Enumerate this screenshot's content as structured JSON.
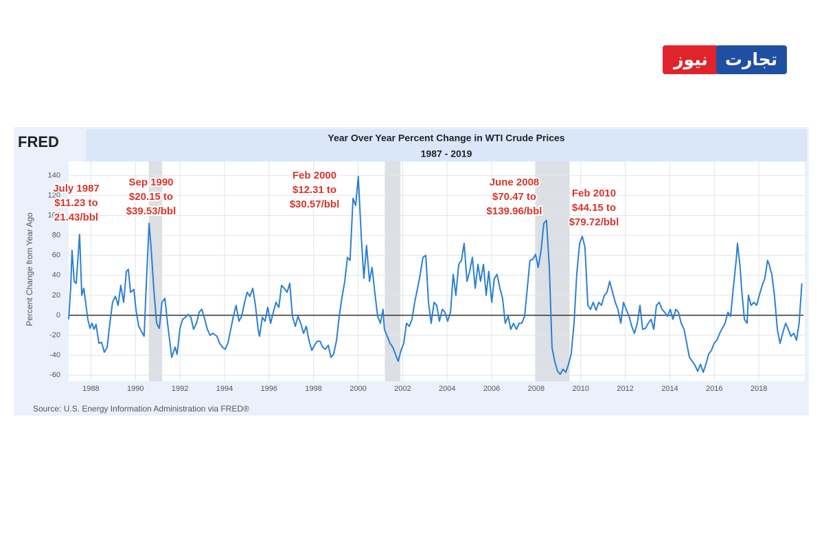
{
  "brand": {
    "left": "نیوز",
    "right": "تجارت"
  },
  "chart_data": {
    "type": "line",
    "logo": "FRED",
    "title": "Year Over Year Percent Change in WTI Crude Prices",
    "subtitle": "1987 - 2019",
    "y_label": "Percent Change from Year Ago",
    "source": "Source: U.S. Energy Information Administration via FRED®",
    "xlim": [
      1987,
      2020
    ],
    "ylim": [
      -66,
      154
    ],
    "xticks": [
      1988,
      1990,
      1992,
      1994,
      1996,
      1998,
      2000,
      2002,
      2004,
      2006,
      2008,
      2010,
      2012,
      2014,
      2016,
      2018
    ],
    "yticks": [
      -60,
      -40,
      -20,
      0,
      20,
      40,
      60,
      80,
      100,
      120,
      140
    ],
    "grid": true,
    "reference_line": 0,
    "recessions": [
      [
        1990.6,
        1991.2
      ],
      [
        2001.2,
        2001.9
      ],
      [
        2007.95,
        2009.5
      ]
    ],
    "annotations": [
      [
        "July 1987",
        "$11.23 to",
        "21.43/bbl"
      ],
      [
        "Sep 1990",
        "$20.15 to",
        "$39.53/bbl"
      ],
      [
        "Feb 2000",
        "$12.31 to",
        "$30.57/bbl"
      ],
      [
        "June 2008",
        "$70.47 to",
        "$139.96/bbl"
      ],
      [
        "Feb 2010",
        "$44.15 to",
        "$79.72/bbl"
      ]
    ],
    "series": [
      {
        "name": "WTI",
        "color": "#2a7fd4",
        "x": [
          1987.0,
          1987.09,
          1987.15,
          1987.25,
          1987.34,
          1987.43,
          1987.49,
          1987.59,
          1987.68,
          1987.86,
          1987.96,
          1988.05,
          1988.14,
          1988.23,
          1988.36,
          1988.48,
          1988.6,
          1988.73,
          1988.85,
          1988.97,
          1989.1,
          1989.22,
          1989.34,
          1989.47,
          1989.59,
          1989.68,
          1989.78,
          1989.93,
          1990.02,
          1990.15,
          1990.27,
          1990.39,
          1990.48,
          1990.61,
          1990.7,
          1990.82,
          1990.95,
          1991.07,
          1991.19,
          1991.32,
          1991.44,
          1991.63,
          1991.78,
          1991.87,
          1992.0,
          1992.12,
          1992.24,
          1992.37,
          1992.49,
          1992.61,
          1992.74,
          1992.86,
          1992.98,
          1993.11,
          1993.23,
          1993.35,
          1993.48,
          1993.66,
          1993.78,
          1993.91,
          1994.03,
          1994.15,
          1994.28,
          1994.4,
          1994.52,
          1994.65,
          1994.77,
          1994.9,
          1995.02,
          1995.14,
          1995.27,
          1995.39,
          1995.51,
          1995.57,
          1995.7,
          1995.82,
          1995.94,
          1996.07,
          1996.19,
          1996.31,
          1996.44,
          1996.56,
          1996.68,
          1996.81,
          1996.93,
          1997.05,
          1997.18,
          1997.3,
          1997.42,
          1997.55,
          1997.67,
          1997.79,
          1997.92,
          1998.04,
          1998.16,
          1998.29,
          1998.41,
          1998.53,
          1998.66,
          1998.78,
          1998.9,
          1999.03,
          1999.15,
          1999.27,
          1999.4,
          1999.52,
          1999.64,
          1999.77,
          1999.89,
          2000.01,
          2000.14,
          2000.26,
          2000.38,
          2000.51,
          2000.63,
          2000.75,
          2000.88,
          2001.0,
          2001.12,
          2001.18,
          2001.31,
          2001.43,
          2001.56,
          2001.68,
          2001.8,
          2001.93,
          2002.05,
          2002.17,
          2002.3,
          2002.42,
          2002.54,
          2002.67,
          2002.79,
          2002.91,
          2003.04,
          2003.16,
          2003.28,
          2003.41,
          2003.53,
          2003.65,
          2003.78,
          2003.9,
          2004.02,
          2004.15,
          2004.27,
          2004.39,
          2004.52,
          2004.64,
          2004.76,
          2004.89,
          2005.01,
          2005.13,
          2005.26,
          2005.38,
          2005.5,
          2005.63,
          2005.75,
          2005.87,
          2006.0,
          2006.12,
          2006.24,
          2006.37,
          2006.49,
          2006.61,
          2006.74,
          2006.86,
          2006.98,
          2007.11,
          2007.23,
          2007.35,
          2007.48,
          2007.6,
          2007.72,
          2007.85,
          2007.97,
          2008.09,
          2008.22,
          2008.34,
          2008.46,
          2008.59,
          2008.71,
          2008.83,
          2008.96,
          2009.08,
          2009.2,
          2009.33,
          2009.45,
          2009.57,
          2009.7,
          2009.82,
          2009.95,
          2010.07,
          2010.19,
          2010.32,
          2010.44,
          2010.56,
          2010.69,
          2010.81,
          2010.93,
          2011.06,
          2011.18,
          2011.3,
          2011.43,
          2011.55,
          2011.67,
          2011.8,
          2011.92,
          2012.04,
          2012.17,
          2012.29,
          2012.41,
          2012.54,
          2012.66,
          2012.78,
          2012.91,
          2013.03,
          2013.16,
          2013.28,
          2013.4,
          2013.53,
          2013.65,
          2013.77,
          2013.9,
          2014.02,
          2014.14,
          2014.27,
          2014.39,
          2014.51,
          2014.64,
          2014.76,
          2014.88,
          2015.01,
          2015.13,
          2015.25,
          2015.38,
          2015.5,
          2015.62,
          2015.74,
          2015.87,
          2015.99,
          2016.11,
          2016.24,
          2016.36,
          2016.48,
          2016.61,
          2016.73,
          2016.85,
          2016.98,
          2017.04,
          2017.16,
          2017.22,
          2017.35,
          2017.47,
          2017.53,
          2017.65,
          2017.78,
          2017.9,
          2018.02,
          2018.15,
          2018.27,
          2018.39,
          2018.46,
          2018.58,
          2018.7,
          2018.83,
          2018.95,
          2019.07,
          2019.2,
          2019.32,
          2019.44,
          2019.57,
          2019.69,
          2019.81,
          2019.93
        ],
        "values": [
          -4,
          27,
          65,
          34,
          32,
          61,
          81,
          20,
          27,
          -4,
          -13,
          -8,
          -14,
          -9,
          -28,
          -27,
          -37,
          -32,
          -8,
          13,
          19,
          10,
          30,
          13,
          44,
          46,
          23,
          26,
          6,
          -11,
          -16,
          -21,
          27,
          92,
          68,
          27,
          -8,
          -13,
          13,
          17,
          -8,
          -42,
          -32,
          -39,
          -13,
          -4,
          -2,
          1,
          -2,
          -14,
          -8,
          3,
          6,
          -4,
          -14,
          -20,
          -18,
          -21,
          -28,
          -32,
          -34,
          -28,
          -14,
          -1,
          10,
          -6,
          -1,
          13,
          23,
          19,
          27,
          10,
          -14,
          -21,
          -2,
          -6,
          8,
          -8,
          3,
          13,
          8,
          30,
          27,
          23,
          32,
          -1,
          -11,
          -1,
          -8,
          -18,
          -11,
          -25,
          -35,
          -30,
          -26,
          -26,
          -32,
          -34,
          -30,
          -42,
          -39,
          -25,
          -1,
          17,
          34,
          58,
          55,
          117,
          110,
          139,
          79,
          37,
          70,
          34,
          48,
          23,
          -1,
          -8,
          6,
          -14,
          -21,
          -28,
          -32,
          -39,
          -46,
          -35,
          -28,
          -8,
          -11,
          -4,
          13,
          27,
          41,
          58,
          60,
          13,
          -8,
          13,
          10,
          -6,
          6,
          3,
          -6,
          3,
          41,
          20,
          51,
          55,
          72,
          34,
          44,
          58,
          27,
          51,
          34,
          51,
          20,
          44,
          13,
          37,
          41,
          27,
          17,
          -8,
          -1,
          -14,
          -8,
          -14,
          -8,
          -8,
          -1,
          27,
          55,
          56,
          61,
          48,
          65,
          92,
          95,
          48,
          -32,
          -46,
          -56,
          -59,
          -54,
          -57,
          -49,
          -39,
          -8,
          41,
          72,
          79,
          68,
          10,
          6,
          13,
          5,
          13,
          10,
          20,
          23,
          34,
          23,
          13,
          6,
          -8,
          13,
          6,
          -1,
          -11,
          -18,
          -8,
          10,
          -14,
          -13,
          -8,
          -4,
          -14,
          10,
          13,
          6,
          3,
          -1,
          6,
          -4,
          6,
          3,
          -8,
          -14,
          -28,
          -42,
          -46,
          -50,
          -56,
          -49,
          -57,
          -49,
          -39,
          -35,
          -28,
          -25,
          -18,
          -13,
          -8,
          3,
          -1,
          27,
          55,
          72,
          48,
          27,
          -4,
          -8,
          20,
          10,
          13,
          10,
          20,
          30,
          37,
          55,
          51,
          41,
          20,
          -14,
          -28,
          -18,
          -8,
          -14,
          -21,
          -18,
          -25,
          -8,
          32
        ]
      }
    ]
  }
}
